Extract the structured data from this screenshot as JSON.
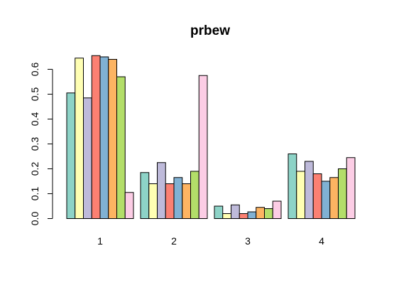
{
  "chart_data": {
    "type": "bar",
    "title": "prbew",
    "xlabel": "",
    "ylabel": "",
    "categories": [
      "1",
      "2",
      "3",
      "4"
    ],
    "ylim": [
      0,
      0.65
    ],
    "yticks": [
      "0.0",
      "0.1",
      "0.2",
      "0.3",
      "0.4",
      "0.5",
      "0.6"
    ],
    "grid": false,
    "legend": "none",
    "series": [
      {
        "color": "#8DD3C7",
        "values": [
          0.505,
          0.185,
          0.05,
          0.26
        ]
      },
      {
        "color": "#FFFFB3",
        "values": [
          0.645,
          0.14,
          0.02,
          0.19
        ]
      },
      {
        "color": "#BEBADA",
        "values": [
          0.485,
          0.225,
          0.055,
          0.23
        ]
      },
      {
        "color": "#FB8072",
        "values": [
          0.655,
          0.14,
          0.02,
          0.18
        ]
      },
      {
        "color": "#80B1D3",
        "values": [
          0.65,
          0.165,
          0.027,
          0.15
        ]
      },
      {
        "color": "#FDB462",
        "values": [
          0.64,
          0.14,
          0.045,
          0.165
        ]
      },
      {
        "color": "#B3DE69",
        "values": [
          0.57,
          0.19,
          0.04,
          0.2
        ]
      },
      {
        "color": "#FCCDE5",
        "values": [
          0.105,
          0.575,
          0.07,
          0.245
        ]
      }
    ]
  }
}
